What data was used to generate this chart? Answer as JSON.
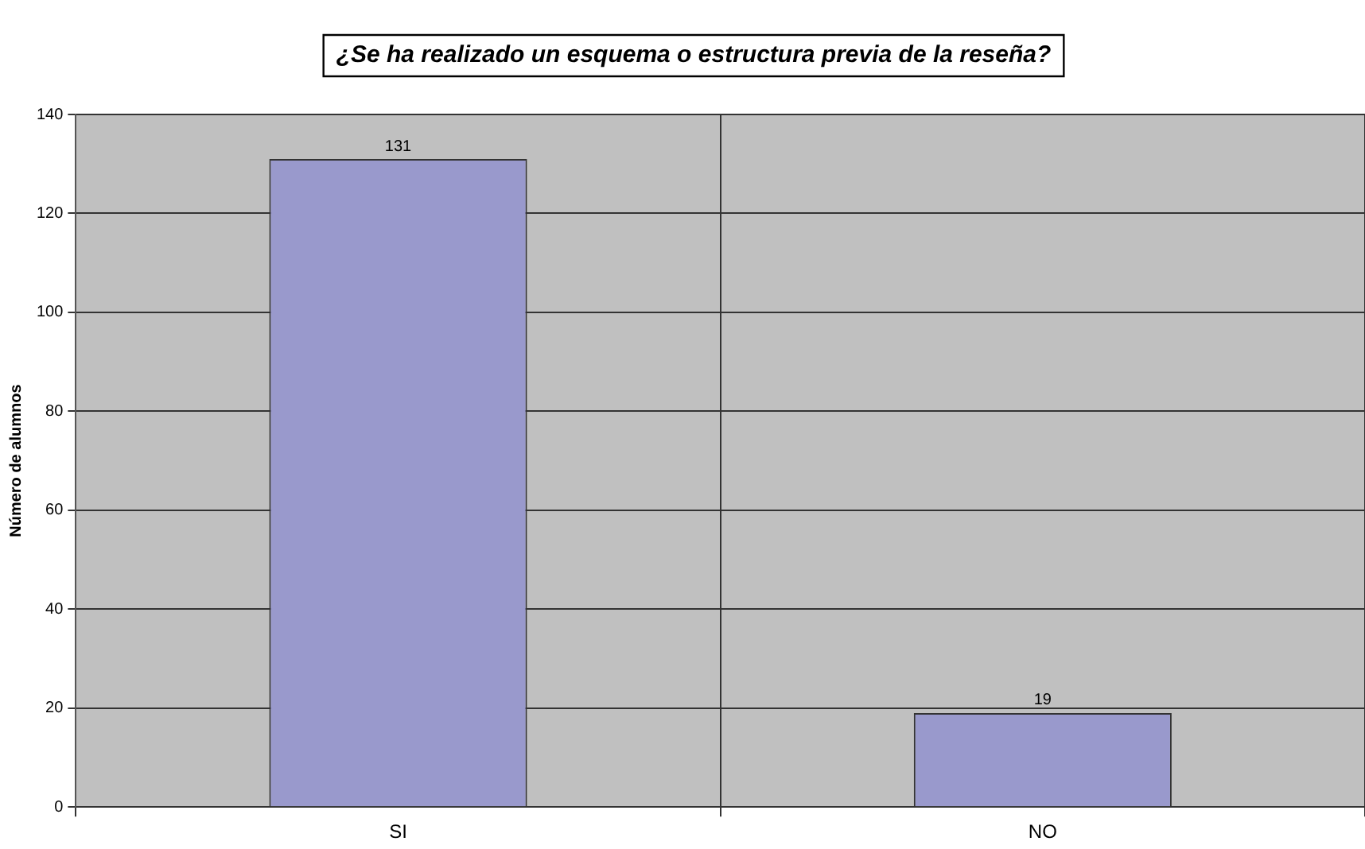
{
  "chart_data": {
    "type": "bar",
    "title": "¿Se ha realizado un esquema o estructura previa de la reseña?",
    "ylabel": "Número de alumnos",
    "categories": [
      "SI",
      "NO"
    ],
    "values": [
      131,
      19
    ],
    "color": "#9999cc",
    "ylim": [
      0,
      140
    ],
    "yticks": [
      0,
      20,
      40,
      60,
      80,
      100,
      120,
      140
    ],
    "grid": true,
    "data_labels": true
  }
}
